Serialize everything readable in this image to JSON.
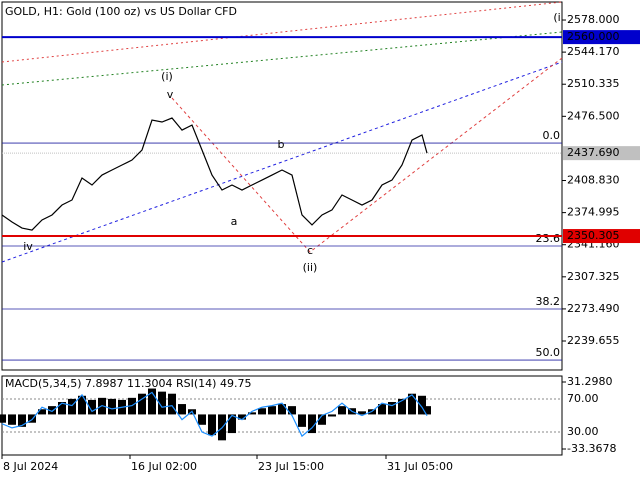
{
  "chart_data": [
    {
      "type": "line",
      "title": "GOLD, H1:  Gold (100 oz) vs US Dollar CFD",
      "x": [
        0,
        10,
        20,
        30,
        40,
        50,
        60,
        70,
        80,
        90,
        100,
        110,
        120,
        130,
        140,
        150,
        160,
        170,
        180,
        190,
        200,
        210,
        220,
        230,
        240,
        250,
        260,
        270,
        280,
        290,
        300,
        310,
        320,
        330,
        340,
        350,
        360,
        370,
        380,
        390,
        400,
        410,
        420,
        425
      ],
      "series": [
        {
          "name": "GOLD",
          "color": "#000000",
          "values": [
            2372.5,
            2365.1,
            2358.7,
            2356.6,
            2367.2,
            2372.5,
            2383.0,
            2388.3,
            2411.5,
            2404.1,
            2414.6,
            2419.9,
            2425.2,
            2430.4,
            2441.0,
            2472.6,
            2470.5,
            2474.7,
            2462.0,
            2467.3,
            2441.0,
            2414.6,
            2398.8,
            2404.1,
            2398.8,
            2404.1,
            2409.3,
            2414.6,
            2419.9,
            2414.6,
            2372.5,
            2362.0,
            2372.5,
            2377.8,
            2393.6,
            2388.3,
            2383.0,
            2388.3,
            2404.1,
            2409.3,
            2425.2,
            2451.5,
            2456.8,
            2437.7
          ]
        }
      ],
      "xlim": [
        0,
        560
      ],
      "ylim": [
        2209.1,
        2597.0
      ],
      "yticks": [
        {
          "value": 2578.0,
          "label": "2578.000"
        },
        {
          "value": 2544.17,
          "label": "2544.170"
        },
        {
          "value": 2510.335,
          "label": "2510.335"
        },
        {
          "value": 2476.5,
          "label": "2476.500"
        },
        {
          "value": 2408.83,
          "label": "2408.830"
        },
        {
          "value": 2374.995,
          "label": "2374.995"
        },
        {
          "value": 2341.16,
          "label": "2341.160"
        },
        {
          "value": 2307.325,
          "label": "2307.325"
        },
        {
          "value": 2273.49,
          "label": "2273.490"
        },
        {
          "value": 2239.655,
          "label": "2239.655"
        }
      ],
      "levels": [
        {
          "value": 2560.0,
          "label": "2560.000",
          "color": "#0000cc"
        },
        {
          "value": 2437.69,
          "label": "2437.690",
          "color": "#c0c0c0"
        },
        {
          "value": 2350.305,
          "label": "2350.305",
          "color": "#e00000"
        }
      ],
      "fibo": [
        {
          "value": 2448.3,
          "label": "0.0"
        },
        {
          "value": 2339.8,
          "label": "23.6"
        },
        {
          "value": 2273.4,
          "label": "38.2"
        },
        {
          "value": 2219.6,
          "label": "50.0"
        }
      ],
      "annotations": [
        {
          "text": "(i)",
          "color": "#c00000"
        },
        {
          "text": "v",
          "color": "#808080"
        },
        {
          "text": "b",
          "color": "#808080"
        },
        {
          "text": "a",
          "color": "#808080"
        },
        {
          "text": "c",
          "color": "#808080"
        },
        {
          "text": "(ii)",
          "color": "#c00000"
        },
        {
          "text": "iv",
          "color": "#808080"
        },
        {
          "text": "(i",
          "color": "#c00000"
        }
      ]
    },
    {
      "type": "indicator",
      "title": "MACD(5,34,5) 7.8987 11.3004 RSI(14) 49.75",
      "x": [
        0,
        10,
        20,
        30,
        40,
        50,
        60,
        70,
        80,
        90,
        100,
        110,
        120,
        130,
        140,
        150,
        160,
        170,
        180,
        190,
        200,
        210,
        220,
        230,
        240,
        250,
        260,
        270,
        280,
        290,
        300,
        310,
        320,
        330,
        340,
        350,
        360,
        370,
        380,
        390,
        400,
        410,
        420,
        425
      ],
      "series": [
        {
          "name": "MACD",
          "color": "#000000",
          "values": [
            -8,
            -10,
            -12,
            -8,
            5,
            8,
            12,
            15,
            18,
            14,
            16,
            15,
            14,
            16,
            20,
            25,
            22,
            20,
            10,
            5,
            -10,
            -20,
            -25,
            -18,
            -5,
            2,
            6,
            8,
            10,
            8,
            -12,
            -18,
            -10,
            -2,
            8,
            6,
            3,
            5,
            10,
            12,
            15,
            20,
            18,
            8
          ]
        },
        {
          "name": "RSI",
          "color": "#1e90ff",
          "axis": "y2",
          "values": [
            40,
            35,
            38,
            45,
            60,
            55,
            65,
            62,
            75,
            55,
            62,
            58,
            60,
            62,
            70,
            78,
            60,
            62,
            45,
            55,
            30,
            25,
            35,
            50,
            45,
            55,
            60,
            62,
            65,
            50,
            25,
            35,
            50,
            55,
            65,
            55,
            50,
            55,
            65,
            62,
            68,
            75,
            60,
            49.75
          ]
        }
      ],
      "xlim": [
        0,
        560
      ],
      "xticks": [
        {
          "value": 0,
          "label": "8 Jul 2024"
        },
        {
          "value": 128,
          "label": "16 Jul 02:00"
        },
        {
          "value": 255,
          "label": "23 Jul 15:00"
        },
        {
          "value": 384,
          "label": "31 Jul 05:00"
        }
      ],
      "ylim": [
        -39.16,
        37.09
      ],
      "yticks": [
        {
          "value": 31.298,
          "label": "31.2980"
        },
        {
          "value": -33.3678,
          "label": "-33.3678"
        }
      ],
      "y2lim": [
        2.1,
        97.9
      ],
      "y2ticks": [
        {
          "value": 70,
          "label": "70.00"
        },
        {
          "value": 30,
          "label": "30.00"
        }
      ]
    }
  ]
}
